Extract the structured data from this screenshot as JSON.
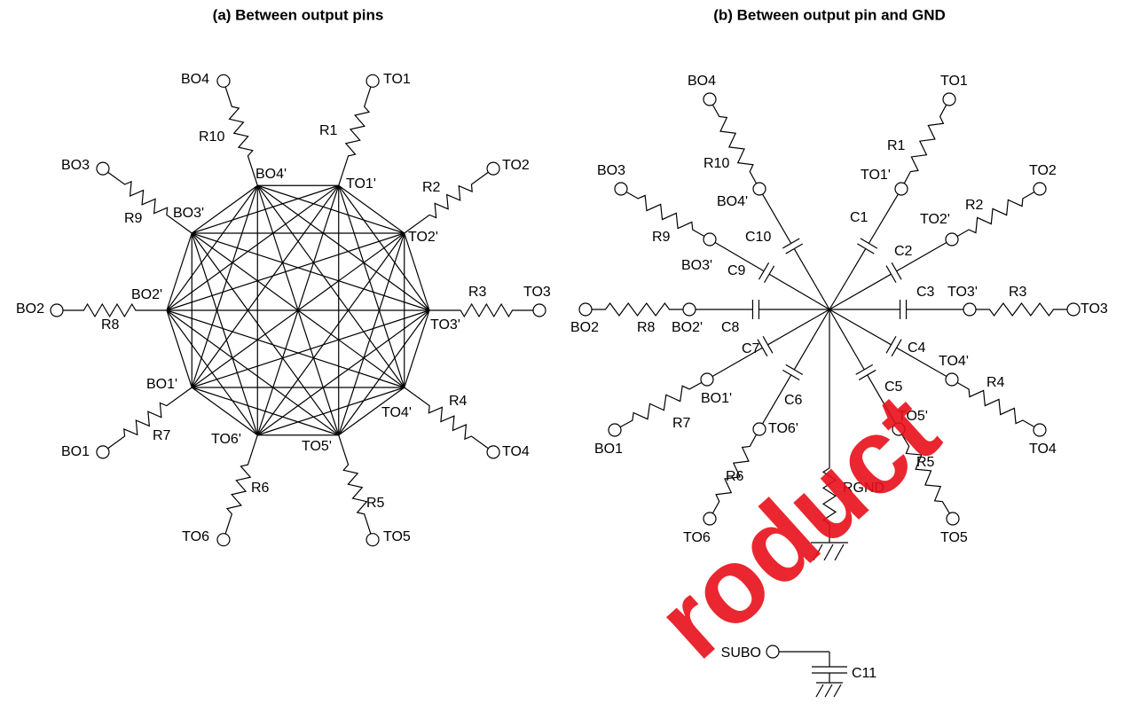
{
  "diagram_a": {
    "title": "(a) Between output pins",
    "pins": [
      "TO1",
      "TO2",
      "TO3",
      "TO4",
      "TO5",
      "TO6",
      "BO1",
      "BO2",
      "BO3",
      "BO4"
    ],
    "nodes": [
      "TO1'",
      "TO2'",
      "TO3'",
      "TO4'",
      "TO5'",
      "TO6'",
      "BO1'",
      "BO2'",
      "BO3'",
      "BO4'"
    ],
    "resistors": [
      "R1",
      "R2",
      "R3",
      "R4",
      "R5",
      "R6",
      "R7",
      "R8",
      "R9",
      "R10"
    ]
  },
  "diagram_b": {
    "title": "(b) Between output pin and GND",
    "pins": [
      "TO1",
      "TO2",
      "TO3",
      "TO4",
      "TO5",
      "TO6",
      "BO1",
      "BO2",
      "BO3",
      "BO4"
    ],
    "nodes": [
      "TO1'",
      "TO2'",
      "TO3'",
      "TO4'",
      "TO5'",
      "TO6'",
      "BO1'",
      "BO2'",
      "BO3'",
      "BO4'"
    ],
    "resistors": [
      "R1",
      "R2",
      "R3",
      "R4",
      "R5",
      "R6",
      "R7",
      "R8",
      "R9",
      "R10"
    ],
    "capacitors": [
      "C1",
      "C2",
      "C3",
      "C4",
      "C5",
      "C6",
      "C7",
      "C8",
      "C9",
      "C10"
    ],
    "ground_resistor": "RGND"
  },
  "substrate": {
    "pin": "SUBO",
    "capacitor": "C11"
  },
  "watermark": "roduct"
}
